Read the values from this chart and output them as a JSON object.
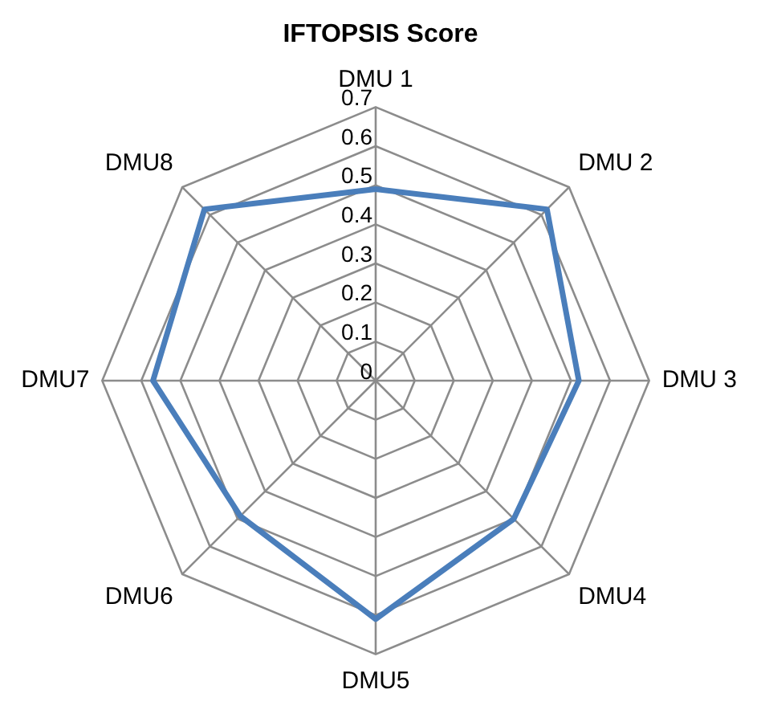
{
  "chart_data": {
    "type": "radar",
    "title": "IFTOPSIS Score",
    "categories": [
      "DMU 1",
      "DMU 2",
      "DMU 3",
      "DMU4",
      "DMU5",
      "DMU6",
      "DMU7",
      "DMU8"
    ],
    "series": [
      {
        "color": "#4a7ebb",
        "values": [
          0.49,
          0.62,
          0.52,
          0.5,
          0.61,
          0.49,
          0.57,
          0.62
        ]
      }
    ],
    "ylim": [
      0,
      0.7
    ],
    "yticks": [
      0,
      0.1,
      0.2,
      0.3,
      0.4,
      0.5,
      0.6,
      0.7
    ],
    "grid": true,
    "legend": false,
    "marker": "none"
  }
}
